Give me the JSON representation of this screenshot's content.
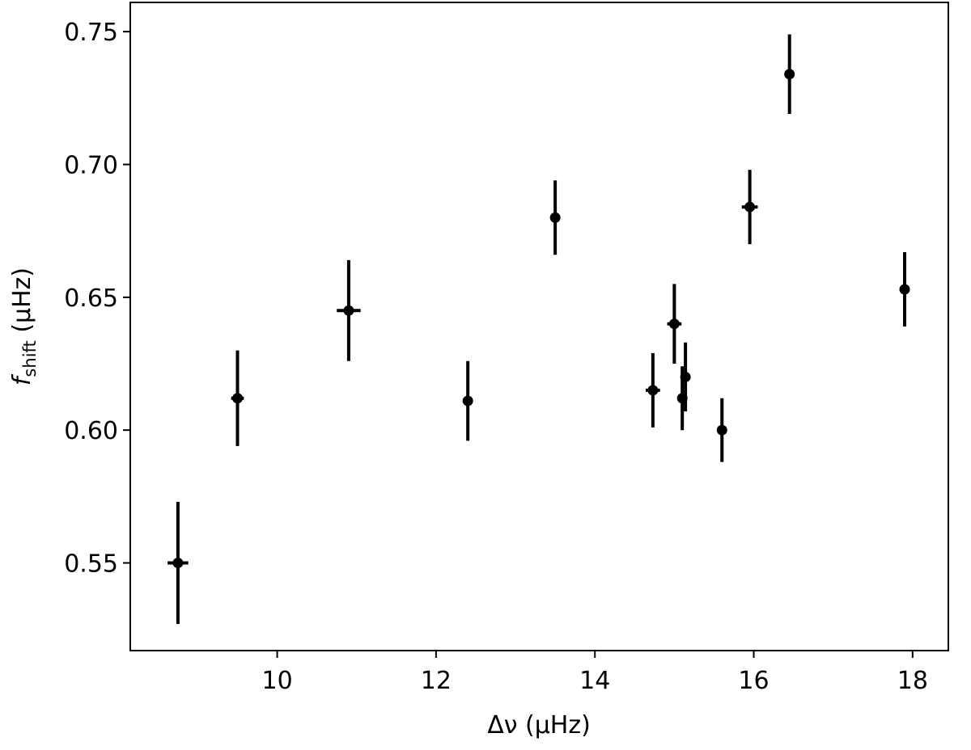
{
  "chart_data": {
    "type": "scatter",
    "title": "",
    "xlabel": "Δν (μHz)",
    "ylabel": {
      "symbol": "f",
      "subscript": "shift",
      "unit": " (μHz)"
    },
    "xlim": [
      8.15,
      18.45
    ],
    "ylim": [
      0.517,
      0.761
    ],
    "xticks": [
      10,
      12,
      14,
      16,
      18
    ],
    "xtick_labels": [
      "10",
      "12",
      "14",
      "16",
      "18"
    ],
    "yticks": [
      0.55,
      0.6,
      0.65,
      0.7,
      0.75
    ],
    "ytick_labels": [
      "0.55",
      "0.60",
      "0.65",
      "0.70",
      "0.75"
    ],
    "grid": false,
    "legend": "none",
    "marker_color": "#000000",
    "series": [
      {
        "points": [
          {
            "x": 8.75,
            "y": 0.55,
            "xerr": 0.13,
            "yerr": 0.023
          },
          {
            "x": 9.5,
            "y": 0.612,
            "xerr": 0.08,
            "yerr": 0.018
          },
          {
            "x": 10.9,
            "y": 0.645,
            "xerr": 0.15,
            "yerr": 0.019
          },
          {
            "x": 12.4,
            "y": 0.611,
            "xerr": 0.03,
            "yerr": 0.015
          },
          {
            "x": 13.5,
            "y": 0.68,
            "xerr": 0.06,
            "yerr": 0.014
          },
          {
            "x": 14.73,
            "y": 0.615,
            "xerr": 0.09,
            "yerr": 0.014
          },
          {
            "x": 15.0,
            "y": 0.64,
            "xerr": 0.09,
            "yerr": 0.015
          },
          {
            "x": 15.1,
            "y": 0.612,
            "xerr": 0.04,
            "yerr": 0.012
          },
          {
            "x": 15.14,
            "y": 0.62,
            "xerr": 0.04,
            "yerr": 0.013
          },
          {
            "x": 15.6,
            "y": 0.6,
            "xerr": 0.03,
            "yerr": 0.012
          },
          {
            "x": 15.95,
            "y": 0.684,
            "xerr": 0.1,
            "yerr": 0.014
          },
          {
            "x": 16.45,
            "y": 0.734,
            "xerr": 0.03,
            "yerr": 0.015
          },
          {
            "x": 17.9,
            "y": 0.653,
            "xerr": 0.03,
            "yerr": 0.014
          }
        ]
      }
    ]
  }
}
